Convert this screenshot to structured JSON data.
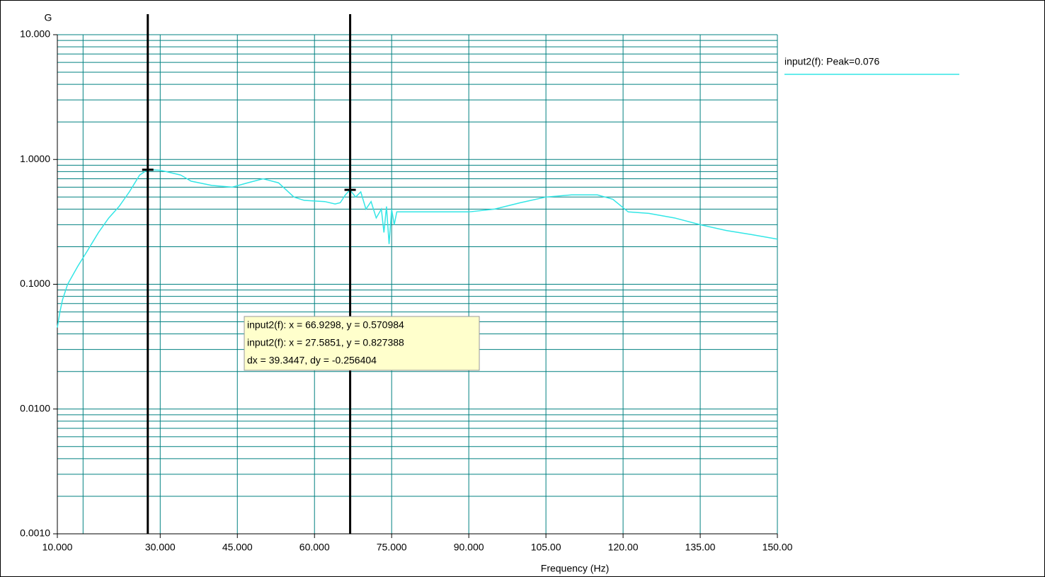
{
  "chart_data": {
    "type": "line",
    "y_label": "G",
    "x_label": "Frequency (Hz)",
    "log_y": true,
    "grid": true,
    "minor_grid": true,
    "grid_color": "#008080",
    "xlim": [
      10,
      150
    ],
    "ylim": [
      0.001,
      10
    ],
    "xticks": [
      {
        "value": 10,
        "label": "10.000"
      },
      {
        "value": 30,
        "label": "30.000"
      },
      {
        "value": 45,
        "label": "45.000"
      },
      {
        "value": 60,
        "label": "60.000"
      },
      {
        "value": 75,
        "label": "75.000"
      },
      {
        "value": 90,
        "label": "90.000"
      },
      {
        "value": 105,
        "label": "105.00"
      },
      {
        "value": 120,
        "label": "120.00"
      },
      {
        "value": 135,
        "label": "135.00"
      },
      {
        "value": 150,
        "label": "150.00"
      }
    ],
    "xminor": [
      15
    ],
    "yticks": [
      {
        "value": 0.001,
        "label": "0.0010"
      },
      {
        "value": 0.01,
        "label": "0.0100"
      },
      {
        "value": 0.1,
        "label": "0.1000"
      },
      {
        "value": 1,
        "label": "1.0000"
      },
      {
        "value": 10,
        "label": "10.000"
      }
    ],
    "legend_position": "right",
    "series": [
      {
        "name": "input2(f): Peak=0.076",
        "color": "#33e6e6",
        "x": [
          10,
          10.5,
          11,
          12,
          14,
          16,
          18,
          20,
          22,
          24,
          26,
          27.6,
          30,
          34,
          36,
          40,
          44,
          47,
          50,
          53,
          56,
          58,
          62,
          64,
          65,
          66,
          66.9,
          68,
          69,
          70,
          71,
          72,
          73,
          73.5,
          74,
          74.5,
          75,
          75.5,
          76,
          80,
          85,
          90,
          95,
          100,
          105,
          110,
          115,
          118,
          121,
          125,
          130,
          135,
          140,
          145,
          150
        ],
        "values": [
          0.045,
          0.06,
          0.075,
          0.1,
          0.14,
          0.19,
          0.26,
          0.34,
          0.42,
          0.55,
          0.75,
          0.83,
          0.82,
          0.75,
          0.67,
          0.62,
          0.6,
          0.65,
          0.7,
          0.65,
          0.5,
          0.47,
          0.46,
          0.44,
          0.45,
          0.52,
          0.57,
          0.5,
          0.55,
          0.4,
          0.46,
          0.34,
          0.4,
          0.26,
          0.42,
          0.21,
          0.4,
          0.3,
          0.38,
          0.38,
          0.38,
          0.38,
          0.4,
          0.45,
          0.5,
          0.52,
          0.52,
          0.48,
          0.38,
          0.37,
          0.34,
          0.3,
          0.27,
          0.25,
          0.23
        ]
      }
    ],
    "cursors": [
      {
        "x": 27.5851,
        "y": 0.827388
      },
      {
        "x": 66.9298,
        "y": 0.570984
      }
    ],
    "annotations": [
      "input2(f): x = 66.9298, y = 0.570984",
      "input2(f): x = 27.5851, y = 0.827388",
      "dx = 39.3447, dy = -0.256404"
    ]
  }
}
